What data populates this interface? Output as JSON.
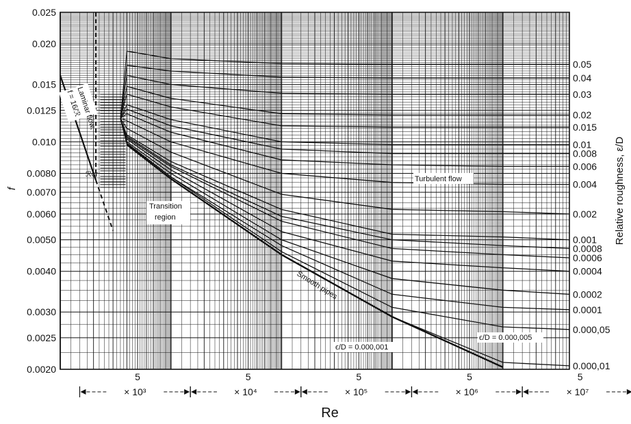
{
  "chart_data": {
    "type": "line",
    "title": "",
    "xlabel": "Re",
    "ylabel": "f",
    "y2label": "Relative roughness, ε/D",
    "x_scale": "log",
    "y_scale": "log",
    "xlim": [
      1000,
      40000000
    ],
    "ylim": [
      0.002,
      0.025
    ],
    "grid": true,
    "legend": "none",
    "y_ticks": [
      "0.025",
      "0.020",
      "0.015",
      "0.0125",
      "0.010",
      "0.0080",
      "0.0070",
      "0.0060",
      "0.0050",
      "0.0040",
      "0.0030",
      "0.0025",
      "0.0020"
    ],
    "y_tick_values": [
      0.025,
      0.02,
      0.015,
      0.0125,
      0.01,
      0.008,
      0.007,
      0.006,
      0.005,
      0.004,
      0.003,
      0.0025,
      0.002
    ],
    "roughness_labels": [
      "0.05",
      "0.04",
      "0.03",
      "0.02",
      "0.015",
      "0.01",
      "0.008",
      "0.006",
      "0.004",
      "0.002",
      "0.001",
      "0.0008",
      "0.0006",
      "0.0004",
      "0.0002",
      "0.0001",
      "0.000,05",
      "0.000,01"
    ],
    "decade_labels": [
      "× 10³",
      "× 10⁴",
      "× 10⁵",
      "× 10⁶",
      "× 10⁷"
    ],
    "five_marker": "5",
    "annotations": {
      "laminar_line1": "Laminar flow,",
      "laminar_line2": "f = 16/ℛ",
      "recrit": "ℛcr",
      "transition_line1": "Transition",
      "transition_line2": "region",
      "turbulent": "Turbulent flow",
      "smooth": "Smooth pipes",
      "eps1": "ϵ/D = 0.000,001",
      "eps5": "ϵ/D = 0.000,005"
    },
    "series": [
      {
        "name": "Laminar flow",
        "x": [
          1000,
          2000,
          3000
        ],
        "y": [
          0.016,
          0.008,
          0.00533
        ]
      },
      {
        "name": "Smooth pipes",
        "x": [
          4000,
          10000,
          100000,
          1000000,
          10000000
        ],
        "y": [
          0.0098,
          0.0077,
          0.0045,
          0.0029,
          0.00203
        ]
      },
      {
        "name": "0.000,01",
        "x": [
          4000,
          10000,
          100000,
          1000000,
          10000000,
          40000000
        ],
        "y": [
          0.0098,
          0.0077,
          0.0045,
          0.0029,
          0.0021,
          0.00205
        ]
      },
      {
        "name": "0.000,05",
        "x": [
          4000,
          10000,
          100000,
          1000000,
          10000000,
          40000000
        ],
        "y": [
          0.0099,
          0.0078,
          0.0046,
          0.0031,
          0.0027,
          0.00265
        ]
      },
      {
        "name": "0.0001",
        "x": [
          4000,
          10000,
          100000,
          1000000,
          10000000,
          40000000
        ],
        "y": [
          0.0099,
          0.0078,
          0.0048,
          0.0034,
          0.0031,
          0.00305
        ]
      },
      {
        "name": "0.0002",
        "x": [
          4000,
          10000,
          100000,
          1000000,
          10000000,
          40000000
        ],
        "y": [
          0.01,
          0.008,
          0.005,
          0.0038,
          0.0035,
          0.0034
        ]
      },
      {
        "name": "0.0004",
        "x": [
          4000,
          10000,
          100000,
          1000000,
          10000000,
          40000000
        ],
        "y": [
          0.0102,
          0.0082,
          0.0053,
          0.0043,
          0.0041,
          0.004
        ]
      },
      {
        "name": "0.0006",
        "x": [
          4000,
          10000,
          100000,
          1000000,
          10000000,
          40000000
        ],
        "y": [
          0.0103,
          0.0084,
          0.0057,
          0.0047,
          0.0045,
          0.0044
        ]
      },
      {
        "name": "0.0008",
        "x": [
          4000,
          10000,
          100000,
          1000000,
          10000000,
          40000000
        ],
        "y": [
          0.0104,
          0.0085,
          0.0059,
          0.005,
          0.0048,
          0.0047
        ]
      },
      {
        "name": "0.001",
        "x": [
          4000,
          10000,
          100000,
          1000000,
          10000000,
          40000000
        ],
        "y": [
          0.0105,
          0.0087,
          0.0062,
          0.0052,
          0.0051,
          0.005
        ]
      },
      {
        "name": "0.002",
        "x": [
          4000,
          10000,
          100000,
          1000000,
          10000000,
          40000000
        ],
        "y": [
          0.011,
          0.0093,
          0.0069,
          0.0062,
          0.0061,
          0.006
        ]
      },
      {
        "name": "0.004",
        "x": [
          4000,
          10000,
          100000,
          1000000,
          10000000,
          40000000
        ],
        "y": [
          0.0116,
          0.01,
          0.008,
          0.0075,
          0.0074,
          0.0074
        ]
      },
      {
        "name": "0.006",
        "x": [
          4000,
          10000,
          100000,
          1000000,
          10000000,
          40000000
        ],
        "y": [
          0.0122,
          0.0107,
          0.0088,
          0.0085,
          0.0084,
          0.0084
        ]
      },
      {
        "name": "0.008",
        "x": [
          4000,
          10000,
          100000,
          1000000,
          10000000,
          40000000
        ],
        "y": [
          0.0126,
          0.0112,
          0.0095,
          0.0092,
          0.0092,
          0.0092
        ]
      },
      {
        "name": "0.01",
        "x": [
          4000,
          10000,
          100000,
          1000000,
          10000000,
          40000000
        ],
        "y": [
          0.013,
          0.0117,
          0.01,
          0.0098,
          0.0098,
          0.0098
        ]
      },
      {
        "name": "0.015",
        "x": [
          4000,
          10000,
          100000,
          1000000,
          10000000,
          40000000
        ],
        "y": [
          0.014,
          0.0128,
          0.0112,
          0.0111,
          0.0111,
          0.0111
        ]
      },
      {
        "name": "0.02",
        "x": [
          4000,
          10000,
          100000,
          1000000,
          10000000,
          40000000
        ],
        "y": [
          0.0148,
          0.0136,
          0.0122,
          0.0121,
          0.0121,
          0.0121
        ]
      },
      {
        "name": "0.03",
        "x": [
          4000,
          10000,
          100000,
          1000000,
          10000000,
          40000000
        ],
        "y": [
          0.016,
          0.015,
          0.0141,
          0.014,
          0.014,
          0.014
        ]
      },
      {
        "name": "0.04",
        "x": [
          4000,
          10000,
          100000,
          1000000,
          10000000,
          40000000
        ],
        "y": [
          0.0172,
          0.0165,
          0.0158,
          0.0157,
          0.0157,
          0.0157
        ]
      },
      {
        "name": "0.05",
        "x": [
          4000,
          10000,
          100000,
          1000000,
          10000000,
          40000000
        ],
        "y": [
          0.019,
          0.018,
          0.0174,
          0.0173,
          0.0173,
          0.0173
        ]
      }
    ]
  }
}
